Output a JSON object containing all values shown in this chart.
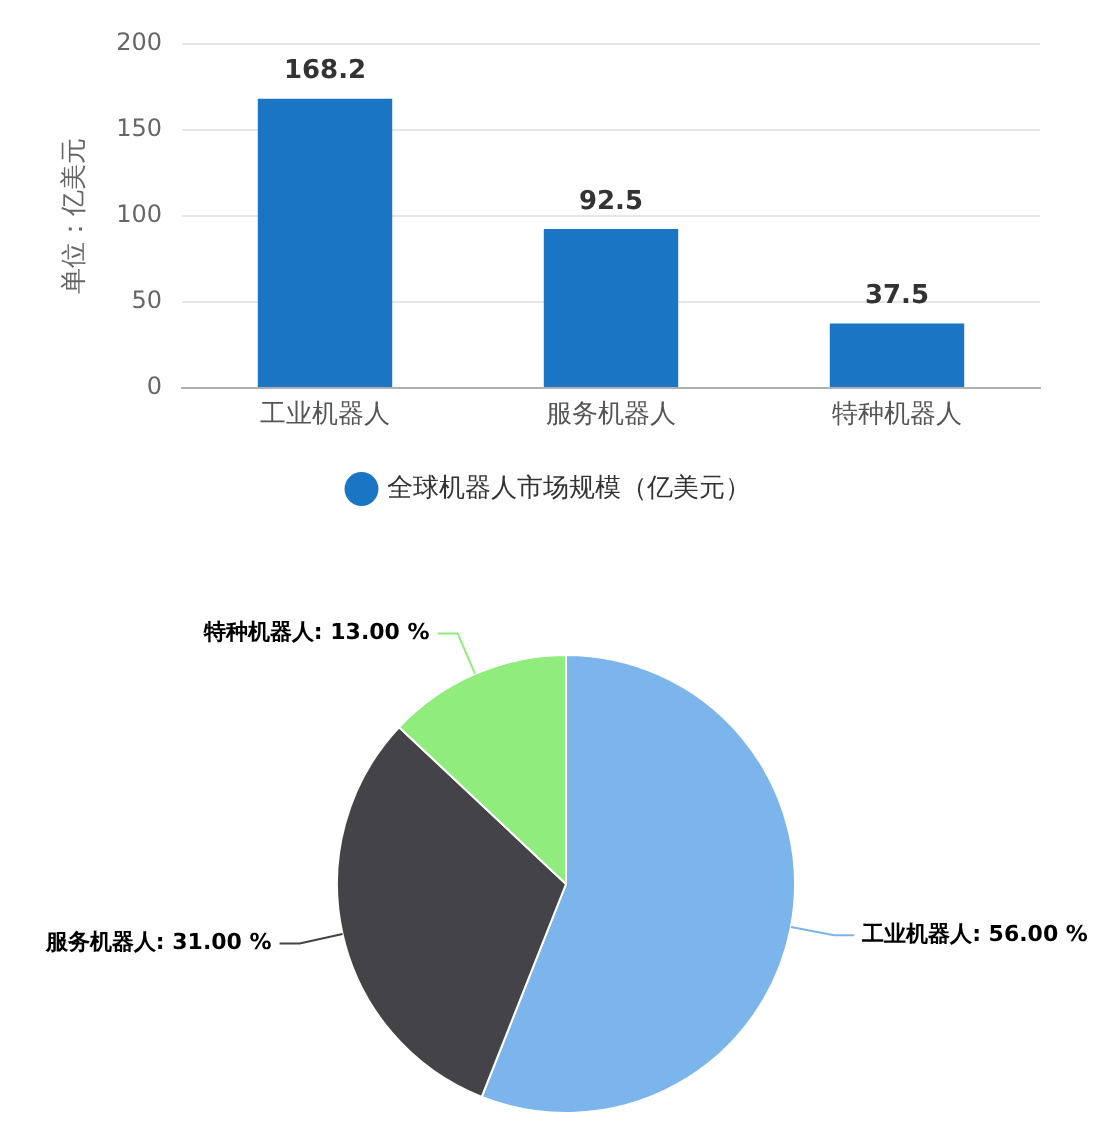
{
  "chart_data": [
    {
      "type": "bar",
      "ylabel": "单位：亿美元",
      "categories": [
        "工业机器人",
        "服务机器人",
        "特种机器人"
      ],
      "series": [
        {
          "name": "全球机器人市场规模（亿美元）",
          "color": "#1a75c5",
          "values": [
            168.2,
            92.5,
            37.5
          ]
        }
      ],
      "ylim": [
        0,
        200
      ],
      "yticks": [
        0,
        50,
        100,
        150,
        200
      ],
      "grid": "y",
      "legend": "bottom",
      "data_labels": true
    },
    {
      "type": "pie",
      "categories": [
        "工业机器人",
        "服务机器人",
        "特种机器人"
      ],
      "values": [
        56,
        31,
        13
      ],
      "colors": [
        "#7cb5ec",
        "#434348",
        "#90ed7d"
      ],
      "value_labels": [
        "56.00 %",
        "31.00 %",
        "13.00 %"
      ]
    }
  ]
}
